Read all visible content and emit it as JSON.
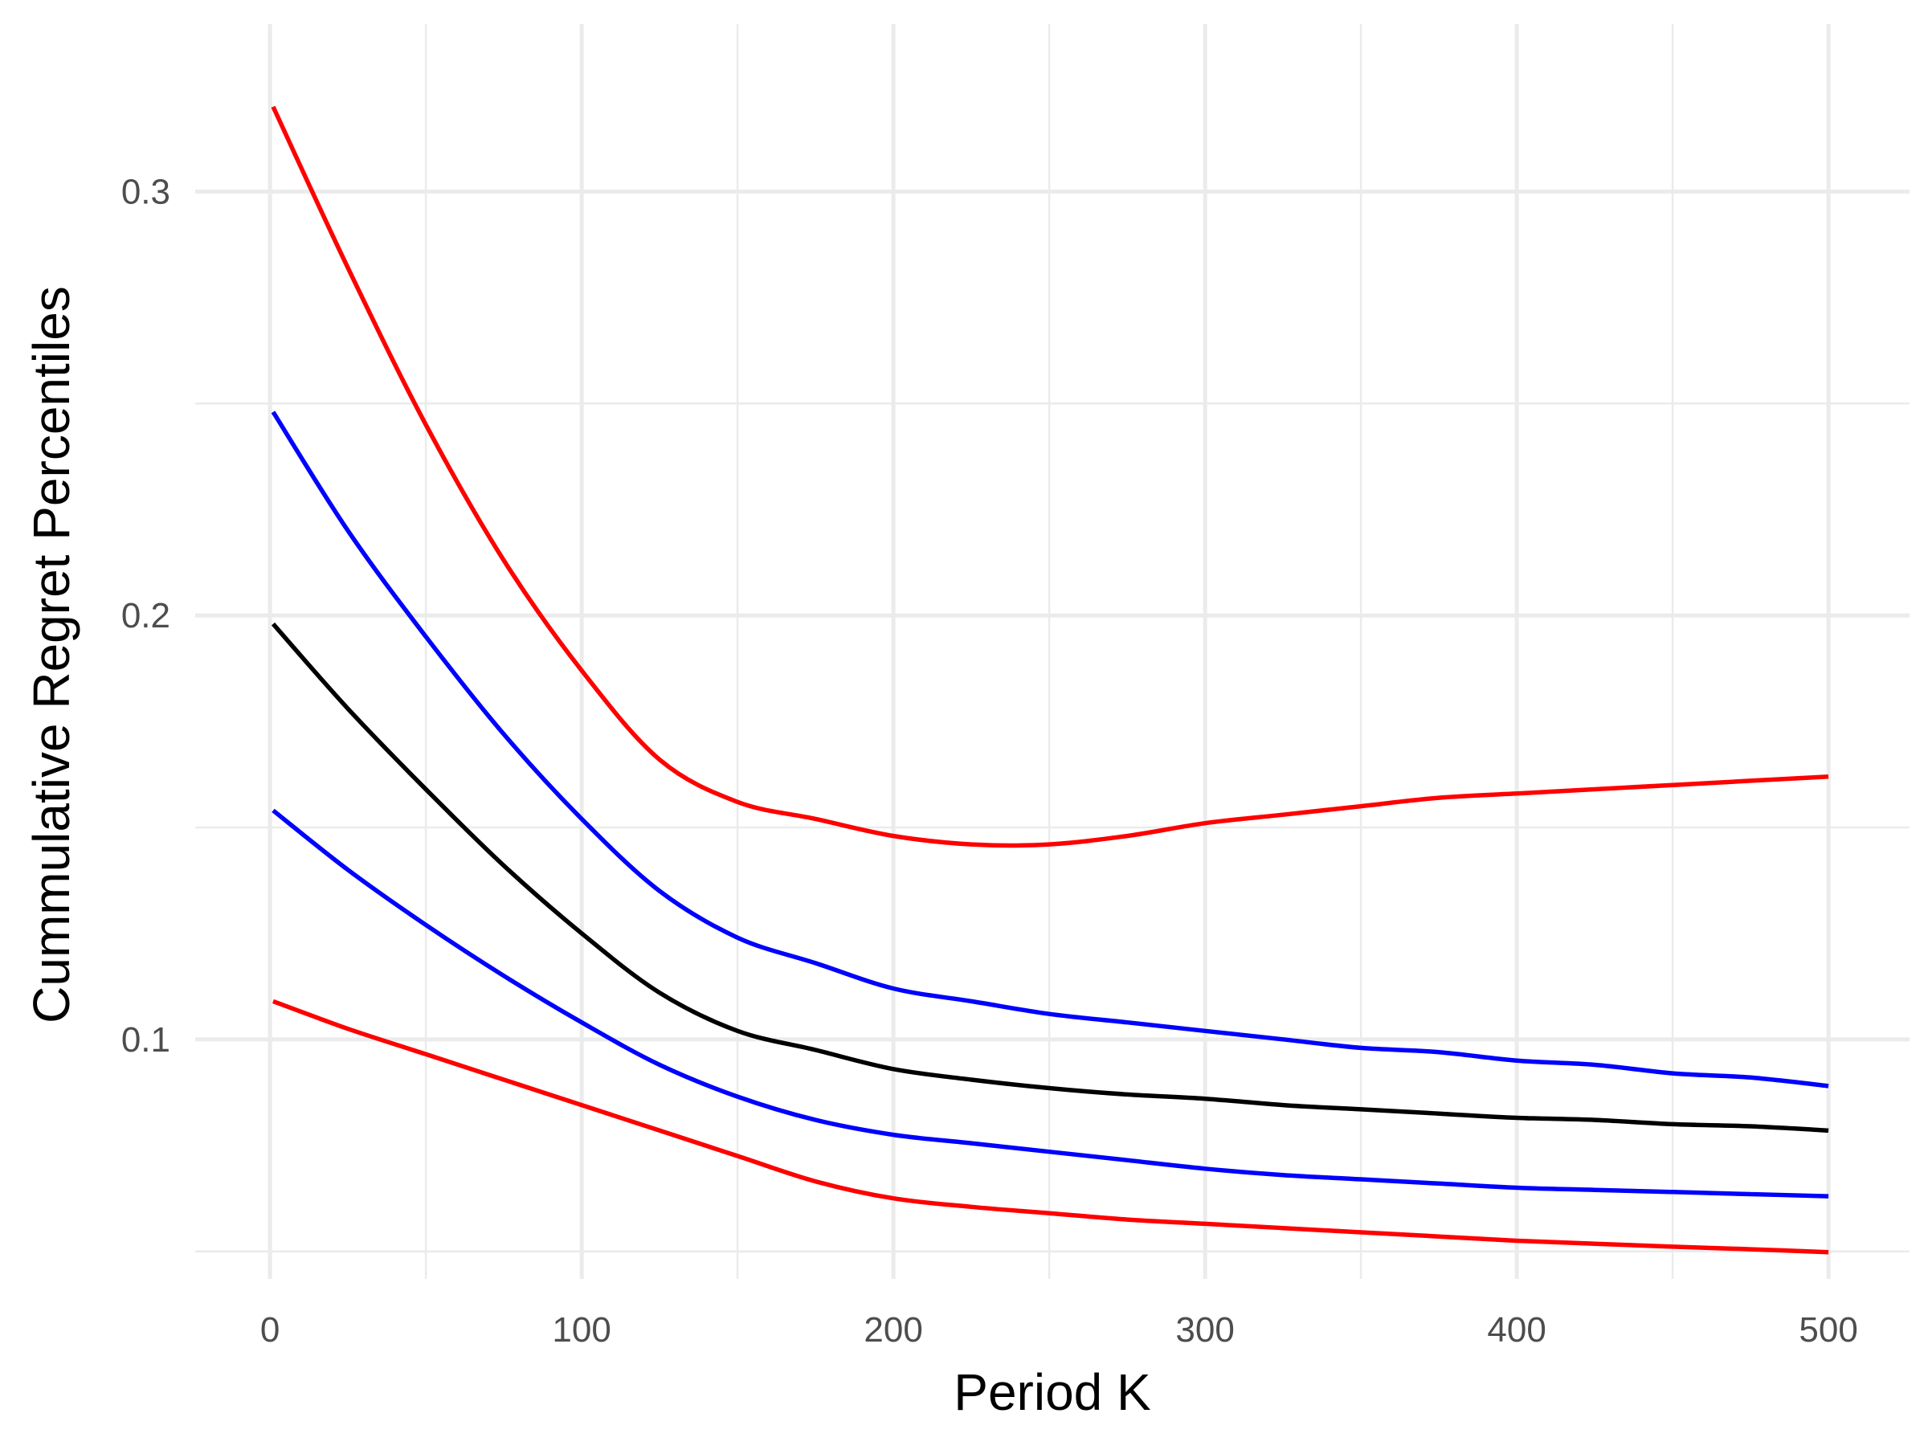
{
  "chart_data": {
    "type": "line",
    "title": "",
    "xlabel": "Period K",
    "ylabel": "Cummulative Regret Percentiles",
    "xlim": [
      -24,
      526
    ],
    "ylim": [
      0.0435,
      0.3395
    ],
    "x_ticks": [
      0,
      100,
      200,
      300,
      400,
      500
    ],
    "x_tick_labels": [
      "0",
      "100",
      "200",
      "300",
      "400",
      "500"
    ],
    "x_minor_ticks": [
      50,
      150,
      250,
      350,
      450
    ],
    "y_ticks": [
      0.1,
      0.2,
      0.3
    ],
    "y_tick_labels": [
      "0.1",
      "0.2",
      "0.3"
    ],
    "y_minor_ticks": [
      0.05,
      0.15,
      0.25
    ],
    "grid": true,
    "legend": "none",
    "series": [
      {
        "color": "#ff0000",
        "x": [
          1,
          25,
          50,
          75,
          100,
          125,
          150,
          175,
          200,
          225,
          250,
          275,
          300,
          325,
          350,
          375,
          400,
          425,
          450,
          475,
          500
        ],
        "y": [
          0.32,
          0.282,
          0.245,
          0.213,
          0.187,
          0.166,
          0.156,
          0.152,
          0.148,
          0.146,
          0.146,
          0.148,
          0.151,
          0.153,
          0.155,
          0.157,
          0.158,
          0.159,
          0.16,
          0.161,
          0.162
        ]
      },
      {
        "color": "#0000ff",
        "x": [
          1,
          25,
          50,
          75,
          100,
          125,
          150,
          175,
          200,
          225,
          250,
          275,
          300,
          325,
          350,
          375,
          400,
          425,
          450,
          475,
          500
        ],
        "y": [
          0.248,
          0.22,
          0.195,
          0.172,
          0.152,
          0.135,
          0.124,
          0.118,
          0.112,
          0.109,
          0.106,
          0.104,
          0.102,
          0.1,
          0.098,
          0.097,
          0.095,
          0.094,
          0.092,
          0.091,
          0.089
        ]
      },
      {
        "color": "#000000",
        "x": [
          1,
          25,
          50,
          75,
          100,
          125,
          150,
          175,
          200,
          225,
          250,
          275,
          300,
          325,
          350,
          375,
          400,
          425,
          450,
          475,
          500
        ],
        "y": [
          0.198,
          0.178,
          0.159,
          0.141,
          0.125,
          0.111,
          0.102,
          0.0975,
          0.093,
          0.0905,
          0.0885,
          0.087,
          0.086,
          0.0845,
          0.0835,
          0.0825,
          0.0815,
          0.081,
          0.08,
          0.0795,
          0.0785
        ]
      },
      {
        "color": "#0000ff",
        "x": [
          1,
          25,
          50,
          75,
          100,
          125,
          150,
          175,
          200,
          225,
          250,
          275,
          300,
          325,
          350,
          375,
          400,
          425,
          450,
          475,
          500
        ],
        "y": [
          0.154,
          0.14,
          0.127,
          0.115,
          0.104,
          0.094,
          0.0865,
          0.081,
          0.0775,
          0.0755,
          0.0735,
          0.0715,
          0.0695,
          0.068,
          0.067,
          0.066,
          0.065,
          0.0645,
          0.064,
          0.0635,
          0.063
        ]
      },
      {
        "color": "#ff0000",
        "x": [
          1,
          25,
          50,
          75,
          100,
          125,
          150,
          175,
          200,
          225,
          250,
          275,
          300,
          325,
          350,
          375,
          400,
          425,
          450,
          475,
          500
        ],
        "y": [
          0.109,
          0.1025,
          0.0965,
          0.0905,
          0.0845,
          0.0785,
          0.0725,
          0.0665,
          0.0625,
          0.0605,
          0.059,
          0.0575,
          0.0565,
          0.0555,
          0.0545,
          0.0535,
          0.0525,
          0.0518,
          0.0511,
          0.0505,
          0.0498
        ]
      }
    ]
  }
}
